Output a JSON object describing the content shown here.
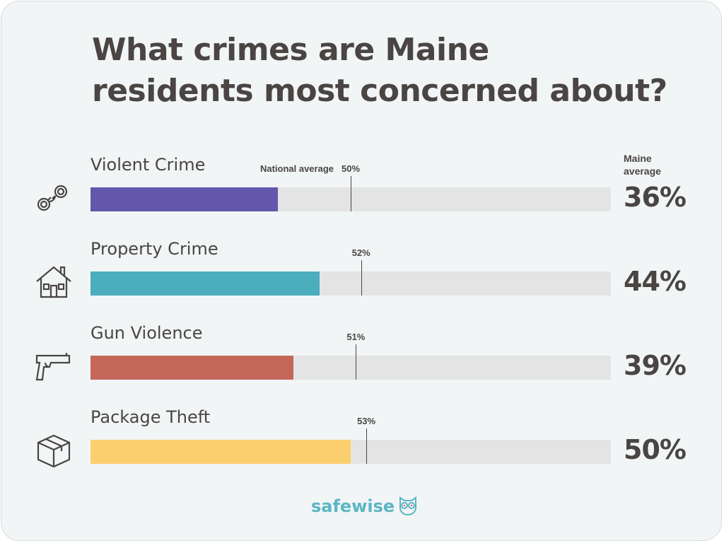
{
  "title_lines": [
    "What crimes are Maine",
    "residents most concerned about?"
  ],
  "column_header": [
    "Maine",
    "average"
  ],
  "national_prefix": "National average",
  "brand": "safewise",
  "colors": {
    "violent": "#6456ad",
    "property": "#4cadbd",
    "gun": "#c4675a",
    "package": "#fbcf6e",
    "track": "#e4e4e4",
    "text": "#4a4543",
    "brand": "#5cb5c4"
  },
  "chart_data": {
    "type": "bar",
    "orientation": "horizontal",
    "xlim": [
      0,
      100
    ],
    "categories": [
      "Violent Crime",
      "Property Crime",
      "Gun Violence",
      "Package Theft"
    ],
    "values": [
      36,
      44,
      39,
      50
    ],
    "value_labels": [
      "36%",
      "44%",
      "39%",
      "50%"
    ],
    "national_average": [
      50,
      52,
      51,
      53
    ],
    "national_labels": [
      "50%",
      "52%",
      "51%",
      "53%"
    ],
    "icons": [
      "handcuffs-icon",
      "house-icon",
      "handgun-icon",
      "package-box-icon"
    ]
  }
}
